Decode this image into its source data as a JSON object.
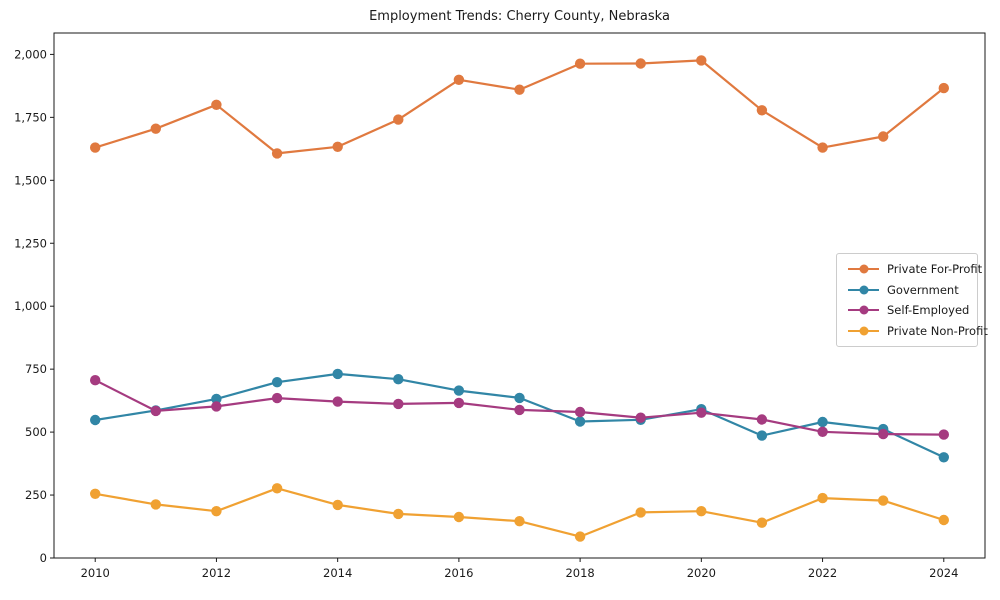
{
  "figure": {
    "title": "Employment Trends: Cherry County, Nebraska"
  },
  "chart_data": {
    "type": "line",
    "title": "Employment Trends: Cherry County, Nebraska",
    "xlabel": "",
    "ylabel": "",
    "grid": false,
    "marker": "circle",
    "legend_position": "center right",
    "xlim": [
      2009.32,
      2024.68
    ],
    "ylim": [
      0,
      2085
    ],
    "x_ticks": [
      2010,
      2012,
      2014,
      2016,
      2018,
      2020,
      2022,
      2024
    ],
    "y_ticks": [
      0,
      250,
      500,
      750,
      1000,
      1250,
      1500,
      1750,
      2000
    ],
    "y_tick_labels": [
      "0",
      "250",
      "500",
      "750",
      "1,000",
      "1,250",
      "1,500",
      "1,750",
      "2,000"
    ],
    "x": [
      2010,
      2011,
      2012,
      2013,
      2014,
      2015,
      2016,
      2017,
      2018,
      2019,
      2020,
      2021,
      2022,
      2023,
      2024
    ],
    "series": [
      {
        "name": "Private For-Profit",
        "color": "#E0793F",
        "values": [
          1630,
          1705,
          1800,
          1607,
          1633,
          1741,
          1899,
          1860,
          1963,
          1964,
          1976,
          1778,
          1630,
          1674,
          1866
        ]
      },
      {
        "name": "Government",
        "color": "#3186A6",
        "values": [
          548,
          586,
          632,
          698,
          731,
          710,
          665,
          636,
          542,
          549,
          591,
          486,
          540,
          512,
          400
        ]
      },
      {
        "name": "Self-Employed",
        "color": "#A53B80",
        "values": [
          706,
          584,
          602,
          635,
          621,
          612,
          616,
          588,
          580,
          557,
          577,
          550,
          501,
          492,
          490
        ]
      },
      {
        "name": "Private Non-Profit",
        "color": "#F0A132",
        "values": [
          255,
          213,
          186,
          277,
          211,
          175,
          163,
          146,
          85,
          181,
          186,
          140,
          238,
          228,
          151
        ]
      }
    ]
  }
}
